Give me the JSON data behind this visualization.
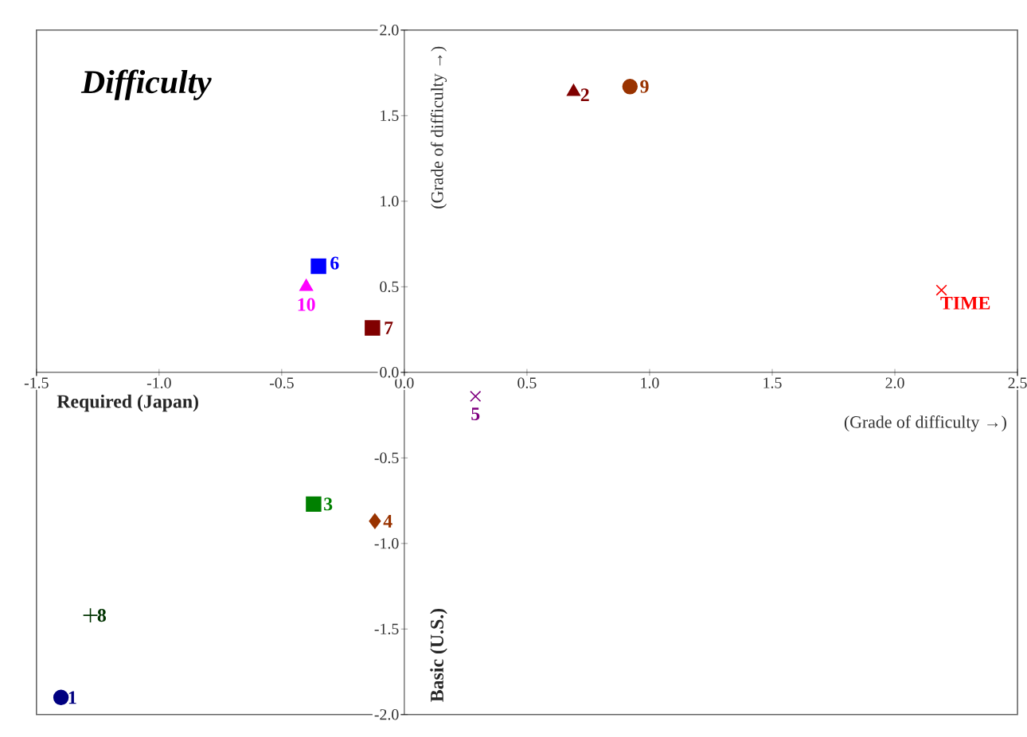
{
  "chart_data": {
    "type": "scatter",
    "title": "Difficulty",
    "xlabel": "(Grade of difficulty →)",
    "ylabel": "(Grade of difficulty →)",
    "annotations": [
      "Required (Japan)",
      "Basic (U.S.)"
    ],
    "xlim": [
      -1.5,
      2.5
    ],
    "ylim": [
      -2,
      2
    ],
    "xticks": [
      -1.5,
      {
        "value": -1,
        "label": "-1.0"
      },
      -0.5,
      {
        "value": 0,
        "label": "0.0"
      },
      0.5,
      {
        "value": 1,
        "label": "1.0"
      },
      1.5,
      {
        "value": 2,
        "label": "2.0"
      },
      2.5
    ],
    "yticks": [
      {
        "value": -2,
        "label": "-2.0"
      },
      -1.5,
      {
        "value": -1,
        "label": "-1.0"
      },
      -0.5,
      {
        "value": 0,
        "label": "0.0"
      },
      0.5,
      {
        "value": 1,
        "label": "1.0"
      },
      1.5,
      {
        "value": 2,
        "label": "2.0"
      }
    ],
    "grid": false,
    "series": [
      {
        "name": "1",
        "color": "#000080",
        "marker": "circle",
        "x": [
          -1.4
        ],
        "values": [
          -1.9
        ]
      },
      {
        "name": "2",
        "color": "#800000",
        "marker": "triangle",
        "x": [
          0.69
        ],
        "values": [
          1.64
        ]
      },
      {
        "name": "3",
        "color": "#008000",
        "marker": "square",
        "x": [
          -0.37
        ],
        "values": [
          -0.77
        ]
      },
      {
        "name": "4",
        "color": "#993300",
        "marker": "diamond",
        "x": [
          -0.12
        ],
        "values": [
          -0.87
        ]
      },
      {
        "name": "5",
        "color": "#800080",
        "marker": "cross",
        "x": [
          0.29
        ],
        "values": [
          -0.14
        ]
      },
      {
        "name": "6",
        "color": "#0000ff",
        "marker": "square",
        "x": [
          -0.35
        ],
        "values": [
          0.62
        ]
      },
      {
        "name": "7",
        "color": "#800000",
        "marker": "square",
        "x": [
          -0.13
        ],
        "values": [
          0.26
        ]
      },
      {
        "name": "8",
        "color": "#003300",
        "marker": "plus",
        "x": [
          -1.28
        ],
        "values": [
          -1.42
        ]
      },
      {
        "name": "9",
        "color": "#993300",
        "marker": "circle",
        "x": [
          0.92
        ],
        "values": [
          1.67
        ]
      },
      {
        "name": "10",
        "color": "#ff00ff",
        "marker": "triangle",
        "x": [
          -0.4
        ],
        "values": [
          0.5
        ]
      },
      {
        "name": "TIME",
        "color": "#ff0000",
        "marker": "cross",
        "x": [
          2.19
        ],
        "values": [
          0.48
        ]
      }
    ]
  }
}
